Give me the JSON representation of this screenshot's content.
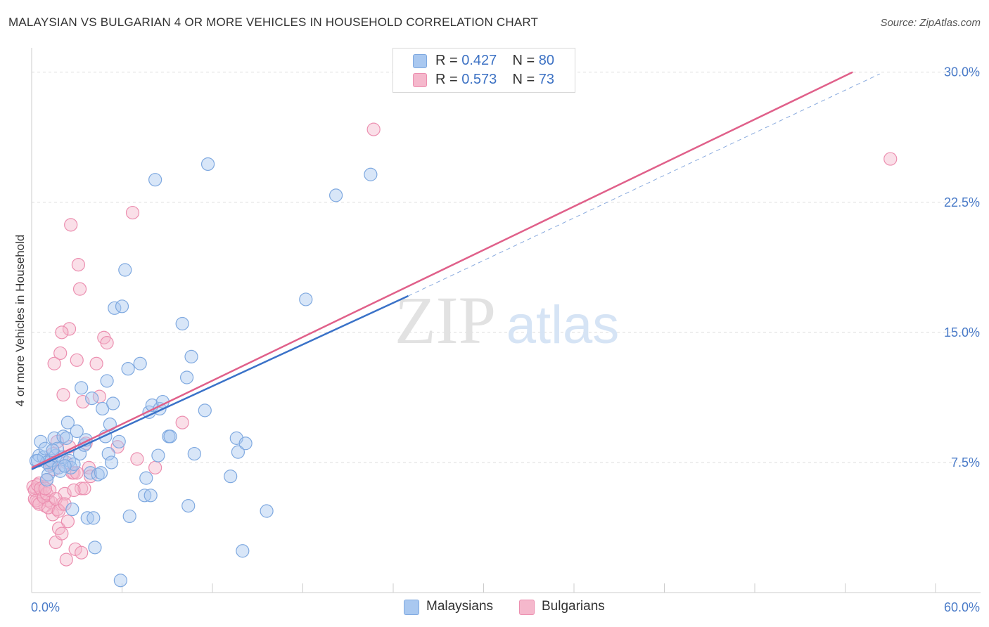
{
  "title": "MALAYSIAN VS BULGARIAN 4 OR MORE VEHICLES IN HOUSEHOLD CORRELATION CHART",
  "source": "Source: ZipAtlas.com",
  "watermark": {
    "zip": "ZIP",
    "atlas": "atlas"
  },
  "colors": {
    "blue_fill": "#a9c8f0",
    "blue_stroke": "#7fa9e0",
    "blue_line": "#3a72c8",
    "pink_fill": "#f5b8cc",
    "pink_stroke": "#ec8fb0",
    "pink_line": "#e0608a",
    "tick_text": "#4a7bc8",
    "grid": "#dddddd"
  },
  "legend": {
    "rows": [
      {
        "r_label": "R =",
        "r_value": "0.427",
        "n_label": "N =",
        "n_value": "80",
        "color": "#a9c8f0"
      },
      {
        "r_label": "R =",
        "r_value": "0.573",
        "n_label": "N =",
        "n_value": "73",
        "color": "#f5b8cc"
      }
    ]
  },
  "bottom_legend": [
    {
      "label": "Malaysians",
      "color": "#a9c8f0"
    },
    {
      "label": "Bulgarians",
      "color": "#f5b8cc"
    }
  ],
  "chart_data": {
    "type": "scatter",
    "title": "MALAYSIAN VS BULGARIAN 4 OR MORE VEHICLES IN HOUSEHOLD CORRELATION CHART",
    "xlabel": "",
    "ylabel": "4 or more Vehicles in Household",
    "xlim": [
      0,
      60
    ],
    "ylim": [
      0,
      31
    ],
    "x_tick_labels": [
      "0.0%",
      "60.0%"
    ],
    "x_tick_values": [
      0,
      60
    ],
    "y_tick_labels": [
      "7.5%",
      "15.0%",
      "22.5%",
      "30.0%"
    ],
    "y_tick_values": [
      7.5,
      15.0,
      22.5,
      30.0
    ],
    "grid": true,
    "legend_position": "top-center",
    "series": [
      {
        "name": "Malaysians",
        "color": "#a9c8f0",
        "trend": {
          "x": [
            0,
            25
          ],
          "y": [
            7.1,
            17.1
          ],
          "dashed_to": {
            "x": 56.3,
            "y": 29.9
          }
        },
        "points": [
          [
            0.3,
            7.6
          ],
          [
            0.5,
            7.9
          ],
          [
            0.6,
            8.7
          ],
          [
            0.8,
            7.8
          ],
          [
            0.9,
            8.3
          ],
          [
            1.0,
            7.5
          ],
          [
            1.2,
            7.3
          ],
          [
            1.3,
            7.6
          ],
          [
            1.5,
            8.9
          ],
          [
            1.6,
            7.9
          ],
          [
            1.7,
            8.3
          ],
          [
            1.8,
            7.2
          ],
          [
            2.0,
            7.8
          ],
          [
            2.1,
            9.0
          ],
          [
            2.3,
            8.9
          ],
          [
            2.4,
            9.8
          ],
          [
            2.5,
            7.6
          ],
          [
            2.6,
            7.2
          ],
          [
            2.7,
            4.8
          ],
          [
            2.8,
            7.4
          ],
          [
            3.0,
            9.3
          ],
          [
            3.2,
            8.0
          ],
          [
            3.3,
            11.8
          ],
          [
            3.5,
            8.5
          ],
          [
            3.6,
            8.8
          ],
          [
            3.7,
            4.3
          ],
          [
            3.9,
            6.9
          ],
          [
            4.0,
            11.2
          ],
          [
            4.1,
            4.3
          ],
          [
            4.2,
            2.6
          ],
          [
            4.4,
            6.8
          ],
          [
            4.6,
            6.9
          ],
          [
            4.7,
            10.6
          ],
          [
            4.9,
            9.0
          ],
          [
            5.0,
            12.2
          ],
          [
            5.1,
            8.0
          ],
          [
            5.2,
            9.7
          ],
          [
            5.3,
            7.5
          ],
          [
            5.4,
            10.9
          ],
          [
            5.5,
            16.4
          ],
          [
            5.8,
            8.7
          ],
          [
            5.9,
            0.7
          ],
          [
            6.0,
            16.5
          ],
          [
            6.2,
            18.6
          ],
          [
            6.4,
            12.9
          ],
          [
            6.5,
            4.4
          ],
          [
            7.2,
            13.2
          ],
          [
            7.5,
            5.6
          ],
          [
            7.6,
            6.6
          ],
          [
            7.8,
            10.4
          ],
          [
            7.9,
            5.6
          ],
          [
            8.0,
            10.8
          ],
          [
            8.2,
            23.8
          ],
          [
            8.4,
            7.9
          ],
          [
            8.5,
            10.6
          ],
          [
            8.7,
            11.0
          ],
          [
            9.1,
            9.0
          ],
          [
            9.2,
            9.0
          ],
          [
            10.0,
            15.5
          ],
          [
            10.3,
            12.4
          ],
          [
            10.4,
            5.0
          ],
          [
            10.6,
            13.6
          ],
          [
            10.8,
            8.0
          ],
          [
            11.5,
            10.5
          ],
          [
            11.7,
            24.7
          ],
          [
            13.2,
            6.7
          ],
          [
            13.6,
            8.9
          ],
          [
            13.7,
            8.1
          ],
          [
            14.0,
            2.4
          ],
          [
            14.2,
            8.6
          ],
          [
            15.6,
            4.7
          ],
          [
            18.2,
            16.9
          ],
          [
            20.2,
            22.9
          ],
          [
            22.5,
            24.1
          ],
          [
            0.4,
            7.6
          ],
          [
            1.1,
            6.8
          ],
          [
            1.4,
            8.2
          ],
          [
            1.9,
            7.0
          ],
          [
            2.2,
            7.3
          ],
          [
            1.0,
            6.5
          ]
        ]
      },
      {
        "name": "Bulgarians",
        "color": "#f5b8cc",
        "trend": {
          "x": [
            0,
            54.5
          ],
          "y": [
            7.2,
            30.0
          ]
        },
        "points": [
          [
            0.2,
            5.4
          ],
          [
            0.3,
            6.0
          ],
          [
            0.4,
            5.2
          ],
          [
            0.5,
            6.3
          ],
          [
            0.6,
            5.8
          ],
          [
            0.7,
            5.6
          ],
          [
            0.8,
            6.1
          ],
          [
            0.9,
            5.0
          ],
          [
            1.0,
            6.5
          ],
          [
            1.1,
            5.3
          ],
          [
            1.2,
            7.3
          ],
          [
            1.3,
            5.2
          ],
          [
            1.4,
            4.5
          ],
          [
            1.5,
            7.1
          ],
          [
            1.6,
            2.9
          ],
          [
            1.7,
            4.8
          ],
          [
            1.8,
            3.7
          ],
          [
            1.9,
            13.8
          ],
          [
            2.0,
            5.1
          ],
          [
            2.1,
            11.4
          ],
          [
            2.2,
            5.7
          ],
          [
            2.3,
            7.5
          ],
          [
            2.4,
            4.1
          ],
          [
            2.5,
            15.2
          ],
          [
            2.6,
            21.2
          ],
          [
            2.7,
            6.9
          ],
          [
            2.8,
            6.9
          ],
          [
            2.9,
            2.5
          ],
          [
            3.0,
            13.4
          ],
          [
            3.1,
            18.9
          ],
          [
            3.2,
            17.5
          ],
          [
            3.3,
            6.0
          ],
          [
            3.4,
            11.0
          ],
          [
            3.5,
            6.0
          ],
          [
            3.6,
            8.6
          ],
          [
            3.8,
            7.2
          ],
          [
            3.9,
            6.7
          ],
          [
            4.3,
            13.2
          ],
          [
            4.5,
            11.3
          ],
          [
            4.8,
            14.7
          ],
          [
            5.0,
            14.4
          ],
          [
            5.7,
            8.4
          ],
          [
            6.7,
            21.9
          ],
          [
            7.0,
            7.7
          ],
          [
            8.2,
            7.2
          ],
          [
            10.0,
            9.8
          ],
          [
            22.7,
            26.7
          ],
          [
            57.0,
            25.0
          ],
          [
            0.1,
            6.1
          ],
          [
            0.2,
            5.9
          ],
          [
            0.3,
            5.3
          ],
          [
            0.4,
            6.2
          ],
          [
            0.5,
            5.1
          ],
          [
            0.6,
            6.0
          ],
          [
            0.8,
            5.5
          ],
          [
            1.0,
            5.7
          ],
          [
            1.1,
            4.9
          ],
          [
            1.2,
            5.9
          ],
          [
            1.3,
            7.4
          ],
          [
            1.4,
            8.0
          ],
          [
            1.6,
            5.4
          ],
          [
            1.8,
            4.7
          ],
          [
            2.0,
            3.4
          ],
          [
            2.2,
            5.1
          ],
          [
            2.3,
            1.9
          ],
          [
            2.5,
            8.4
          ],
          [
            2.8,
            5.9
          ],
          [
            3.0,
            6.9
          ],
          [
            3.3,
            2.3
          ],
          [
            1.5,
            13.2
          ],
          [
            2.0,
            15.0
          ],
          [
            0.9,
            6.0
          ],
          [
            1.7,
            8.7
          ]
        ]
      }
    ]
  }
}
